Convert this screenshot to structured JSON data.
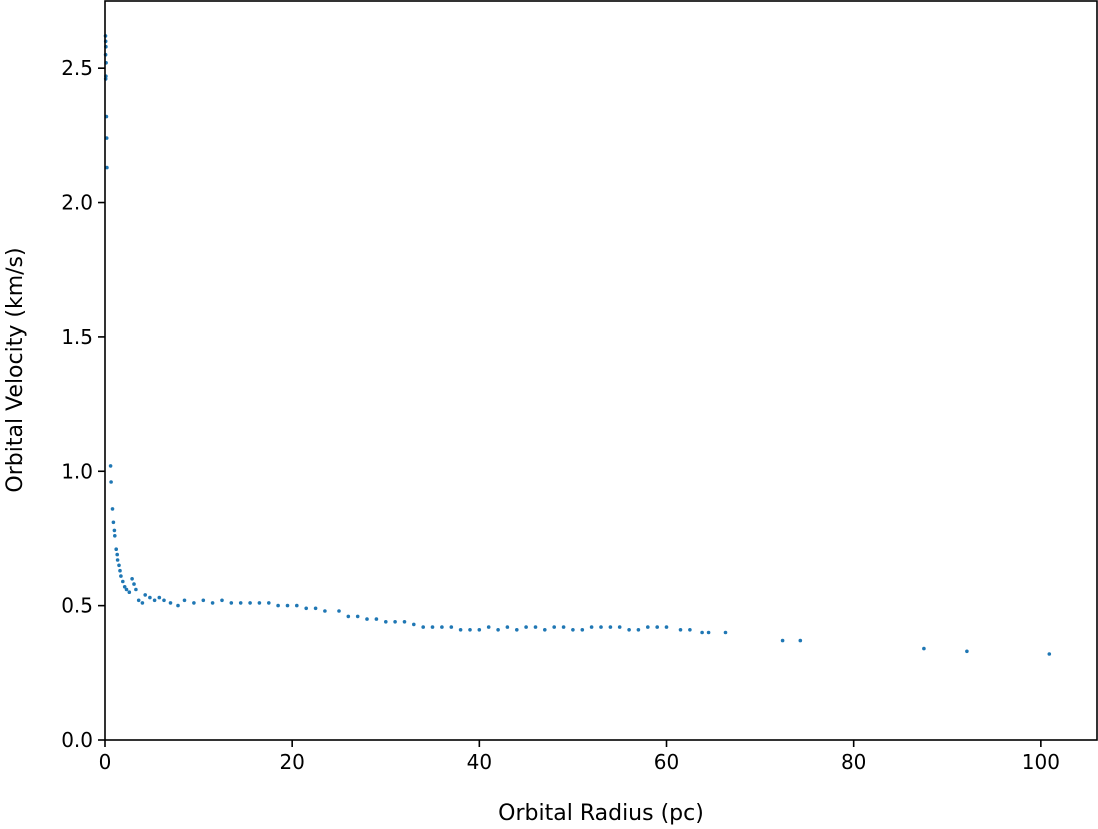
{
  "chart_data": {
    "type": "scatter",
    "title": "",
    "xlabel": "Orbital Radius (pc)",
    "ylabel": "Orbital Velocity (km/s)",
    "xlim": [
      0,
      106
    ],
    "ylim": [
      0,
      2.75
    ],
    "xticks": [
      0,
      20,
      40,
      60,
      80,
      100
    ],
    "xtick_labels": [
      "0",
      "20",
      "40",
      "60",
      "80",
      "100"
    ],
    "yticks": [
      0.0,
      0.5,
      1.0,
      1.5,
      2.0,
      2.5
    ],
    "ytick_labels": [
      "0.0",
      "0.5",
      "1.0",
      "1.5",
      "2.0",
      "2.5"
    ],
    "grid": false,
    "legend": "none",
    "marker_color": "#1f77b4",
    "series": [
      {
        "points": [
          [
            0.05,
            2.62
          ],
          [
            0.08,
            2.6
          ],
          [
            0.1,
            2.58
          ],
          [
            0.06,
            2.55
          ],
          [
            0.12,
            2.52
          ],
          [
            0.1,
            2.47
          ],
          [
            0.08,
            2.46
          ],
          [
            0.15,
            2.32
          ],
          [
            0.18,
            2.24
          ],
          [
            0.2,
            2.13
          ],
          [
            0.6,
            1.02
          ],
          [
            0.65,
            0.96
          ],
          [
            0.8,
            0.86
          ],
          [
            0.9,
            0.81
          ],
          [
            1.0,
            0.78
          ],
          [
            1.05,
            0.76
          ],
          [
            1.2,
            0.71
          ],
          [
            1.3,
            0.69
          ],
          [
            1.35,
            0.67
          ],
          [
            1.5,
            0.65
          ],
          [
            1.6,
            0.63
          ],
          [
            1.7,
            0.61
          ],
          [
            1.9,
            0.59
          ],
          [
            2.1,
            0.57
          ],
          [
            2.3,
            0.56
          ],
          [
            2.6,
            0.55
          ],
          [
            2.9,
            0.6
          ],
          [
            3.1,
            0.58
          ],
          [
            3.3,
            0.56
          ],
          [
            3.6,
            0.52
          ],
          [
            4.0,
            0.51
          ],
          [
            4.3,
            0.54
          ],
          [
            4.8,
            0.53
          ],
          [
            5.3,
            0.52
          ],
          [
            5.8,
            0.53
          ],
          [
            6.3,
            0.52
          ],
          [
            7.0,
            0.51
          ],
          [
            7.8,
            0.5
          ],
          [
            8.5,
            0.52
          ],
          [
            9.5,
            0.51
          ],
          [
            10.5,
            0.52
          ],
          [
            11.5,
            0.51
          ],
          [
            12.5,
            0.52
          ],
          [
            13.5,
            0.51
          ],
          [
            14.5,
            0.51
          ],
          [
            15.5,
            0.51
          ],
          [
            16.5,
            0.51
          ],
          [
            17.5,
            0.51
          ],
          [
            18.5,
            0.5
          ],
          [
            19.5,
            0.5
          ],
          [
            20.5,
            0.5
          ],
          [
            21.5,
            0.49
          ],
          [
            22.5,
            0.49
          ],
          [
            23.5,
            0.48
          ],
          [
            25.0,
            0.48
          ],
          [
            26.0,
            0.46
          ],
          [
            27.0,
            0.46
          ],
          [
            28.0,
            0.45
          ],
          [
            29.0,
            0.45
          ],
          [
            30.0,
            0.44
          ],
          [
            31.0,
            0.44
          ],
          [
            32.0,
            0.44
          ],
          [
            33.0,
            0.43
          ],
          [
            34.0,
            0.42
          ],
          [
            35.0,
            0.42
          ],
          [
            36.0,
            0.42
          ],
          [
            37.0,
            0.42
          ],
          [
            38.0,
            0.41
          ],
          [
            39.0,
            0.41
          ],
          [
            40.0,
            0.41
          ],
          [
            41.0,
            0.42
          ],
          [
            42.0,
            0.41
          ],
          [
            43.0,
            0.42
          ],
          [
            44.0,
            0.41
          ],
          [
            45.0,
            0.42
          ],
          [
            46.0,
            0.42
          ],
          [
            47.0,
            0.41
          ],
          [
            48.0,
            0.42
          ],
          [
            49.0,
            0.42
          ],
          [
            50.0,
            0.41
          ],
          [
            51.0,
            0.41
          ],
          [
            52.0,
            0.42
          ],
          [
            53.0,
            0.42
          ],
          [
            54.0,
            0.42
          ],
          [
            55.0,
            0.42
          ],
          [
            56.0,
            0.41
          ],
          [
            57.0,
            0.41
          ],
          [
            58.0,
            0.42
          ],
          [
            59.0,
            0.42
          ],
          [
            60.0,
            0.42
          ],
          [
            61.5,
            0.41
          ],
          [
            62.5,
            0.41
          ],
          [
            63.8,
            0.4
          ],
          [
            64.5,
            0.4
          ],
          [
            66.3,
            0.4
          ],
          [
            72.4,
            0.37
          ],
          [
            74.3,
            0.37
          ],
          [
            87.5,
            0.34
          ],
          [
            92.1,
            0.33
          ],
          [
            100.9,
            0.32
          ]
        ]
      }
    ]
  }
}
